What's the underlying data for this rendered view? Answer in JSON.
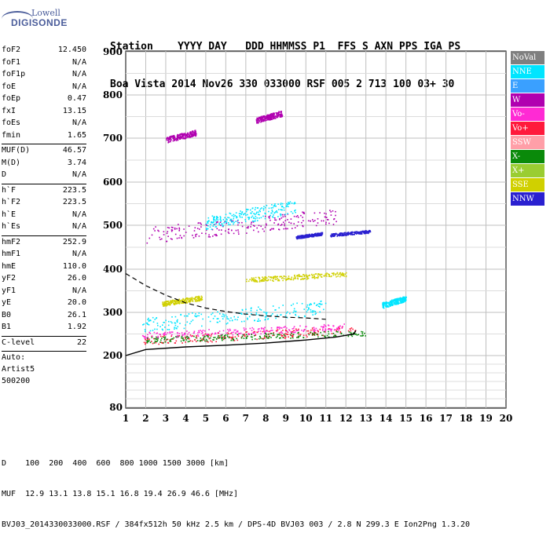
{
  "logo": {
    "line1": "Lowell",
    "line2": "DIGISONDE"
  },
  "header": {
    "row1": [
      "Station",
      "YYYY",
      "DAY",
      "DDD",
      "HHMMSS",
      "P1",
      "FFS",
      "S",
      "AXN",
      "PPS",
      "IGA",
      "PS"
    ],
    "row2": [
      "Boa Vista",
      "2014",
      "Nov26",
      "330",
      "033000",
      "RSF",
      "005",
      "2",
      "713",
      "100",
      "03+",
      "30"
    ]
  },
  "params": {
    "group1": [
      {
        "k": "foF2",
        "v": "12.450"
      },
      {
        "k": "foF1",
        "v": "N/A"
      },
      {
        "k": "foF1p",
        "v": "N/A"
      },
      {
        "k": "foE",
        "v": "N/A"
      },
      {
        "k": "foEp",
        "v": "0.47"
      },
      {
        "k": "fxI",
        "v": "13.15"
      },
      {
        "k": "foEs",
        "v": "N/A"
      },
      {
        "k": "fmin",
        "v": "1.65"
      }
    ],
    "group2": [
      {
        "k": "MUF(D)",
        "v": "46.57"
      },
      {
        "k": "M(D)",
        "v": "3.74"
      },
      {
        "k": "D",
        "v": "N/A"
      }
    ],
    "group3": [
      {
        "k": "h`F",
        "v": "223.5"
      },
      {
        "k": "h`F2",
        "v": "223.5"
      },
      {
        "k": "h`E",
        "v": "N/A"
      },
      {
        "k": "h`Es",
        "v": "N/A"
      }
    ],
    "group4": [
      {
        "k": "hmF2",
        "v": "252.9"
      },
      {
        "k": "hmF1",
        "v": "N/A"
      },
      {
        "k": "hmE",
        "v": "110.0"
      },
      {
        "k": "yF2",
        "v": "26.0"
      },
      {
        "k": "yF1",
        "v": "N/A"
      },
      {
        "k": "yE",
        "v": "20.0"
      },
      {
        "k": "B0",
        "v": "26.1"
      },
      {
        "k": "B1",
        "v": "1.92"
      }
    ],
    "group5": [
      {
        "k": "C-level",
        "v": "22"
      }
    ],
    "auto": [
      "Auto:",
      "Artist5",
      "500200"
    ]
  },
  "legend": [
    {
      "name": "NoVal",
      "color": "#7f7f7f"
    },
    {
      "name": "NNE",
      "color": "#00e5ff"
    },
    {
      "name": "E",
      "color": "#3aa0ff"
    },
    {
      "name": "W",
      "color": "#b000b0"
    },
    {
      "name": "Vo-",
      "color": "#ff2ad4"
    },
    {
      "name": "Vo+",
      "color": "#ff1a3c"
    },
    {
      "name": "SSW",
      "color": "#ff9fa8"
    },
    {
      "name": "X-",
      "color": "#0a8a0a"
    },
    {
      "name": "X+",
      "color": "#9acd32"
    },
    {
      "name": "SSE",
      "color": "#d0d000"
    },
    {
      "name": "NNW",
      "color": "#2a20d0"
    }
  ],
  "footer": {
    "line1": "D    100  200  400  600  800 1000 1500 3000 [km]",
    "line2": "MUF  12.9 13.1 13.8 15.1 16.8 19.4 26.9 46.6 [MHz]",
    "line3": "BVJ03_2014330033000.RSF / 384fx512h 50 kHz 2.5 km / DPS-4D BVJ03 003 / 2.8 N 299.3 E Ion2Png 1.3.20"
  },
  "chart_data": {
    "type": "scatter",
    "x_ticks": [
      "1",
      "2",
      "3",
      "4",
      "5",
      "6",
      "7",
      "8",
      "9",
      "10",
      "11",
      "12",
      "13",
      "14",
      "15",
      "16",
      "17",
      "18",
      "19",
      "20"
    ],
    "y_ticks": [
      "80",
      "200",
      "300",
      "400",
      "500",
      "600",
      "700",
      "800",
      "900"
    ],
    "xlim": [
      1,
      20
    ],
    "ylim": [
      80,
      900
    ],
    "grid": true,
    "legend_position": "right",
    "trace_clusters": [
      {
        "mode": "Vo+",
        "x": [
          1.8,
          12.5
        ],
        "y": [
          225,
          270
        ],
        "note": ""
      },
      {
        "mode": "Vo-",
        "x": [
          1.8,
          12.0
        ],
        "y": [
          240,
          275
        ]
      },
      {
        "mode": "NNE",
        "x": [
          1.8,
          11.0
        ],
        "y": [
          255,
          330
        ]
      },
      {
        "mode": "W",
        "x": [
          2.0,
          11.5
        ],
        "y": [
          460,
          540
        ]
      },
      {
        "mode": "NNE",
        "x": [
          5.0,
          9.5
        ],
        "y": [
          490,
          560
        ]
      },
      {
        "mode": "W",
        "x": [
          3.0,
          4.5
        ],
        "y": [
          690,
          720
        ]
      },
      {
        "mode": "W",
        "x": [
          7.5,
          8.8
        ],
        "y": [
          735,
          765
        ]
      },
      {
        "mode": "SSE",
        "x": [
          7.0,
          12.0
        ],
        "y": [
          370,
          395
        ]
      },
      {
        "mode": "SSE",
        "x": [
          2.8,
          4.8
        ],
        "y": [
          315,
          340
        ]
      },
      {
        "mode": "NNW",
        "x": [
          9.5,
          10.8
        ],
        "y": [
          470,
          485
        ]
      },
      {
        "mode": "NNW",
        "x": [
          11.2,
          13.2
        ],
        "y": [
          475,
          490
        ]
      },
      {
        "mode": "NNE",
        "x": [
          13.8,
          15.0
        ],
        "y": [
          310,
          340
        ]
      },
      {
        "mode": "X-",
        "x": [
          2.0,
          13.0
        ],
        "y": [
          230,
          260
        ]
      }
    ],
    "profile_solid": [
      [
        1.0,
        200
      ],
      [
        2.0,
        214
      ],
      [
        4.0,
        220
      ],
      [
        6.0,
        224
      ],
      [
        8.0,
        229
      ],
      [
        10.0,
        236
      ],
      [
        11.5,
        243
      ],
      [
        12.4,
        250
      ],
      [
        12.5,
        258
      ]
    ],
    "profile_dashed": [
      [
        1.0,
        390
      ],
      [
        2.0,
        362
      ],
      [
        3.0,
        340
      ],
      [
        4.0,
        322
      ],
      [
        5.0,
        310
      ],
      [
        6.0,
        302
      ],
      [
        7.0,
        296
      ],
      [
        8.0,
        292
      ],
      [
        9.0,
        289
      ],
      [
        10.0,
        287
      ],
      [
        11.0,
        284
      ]
    ]
  }
}
